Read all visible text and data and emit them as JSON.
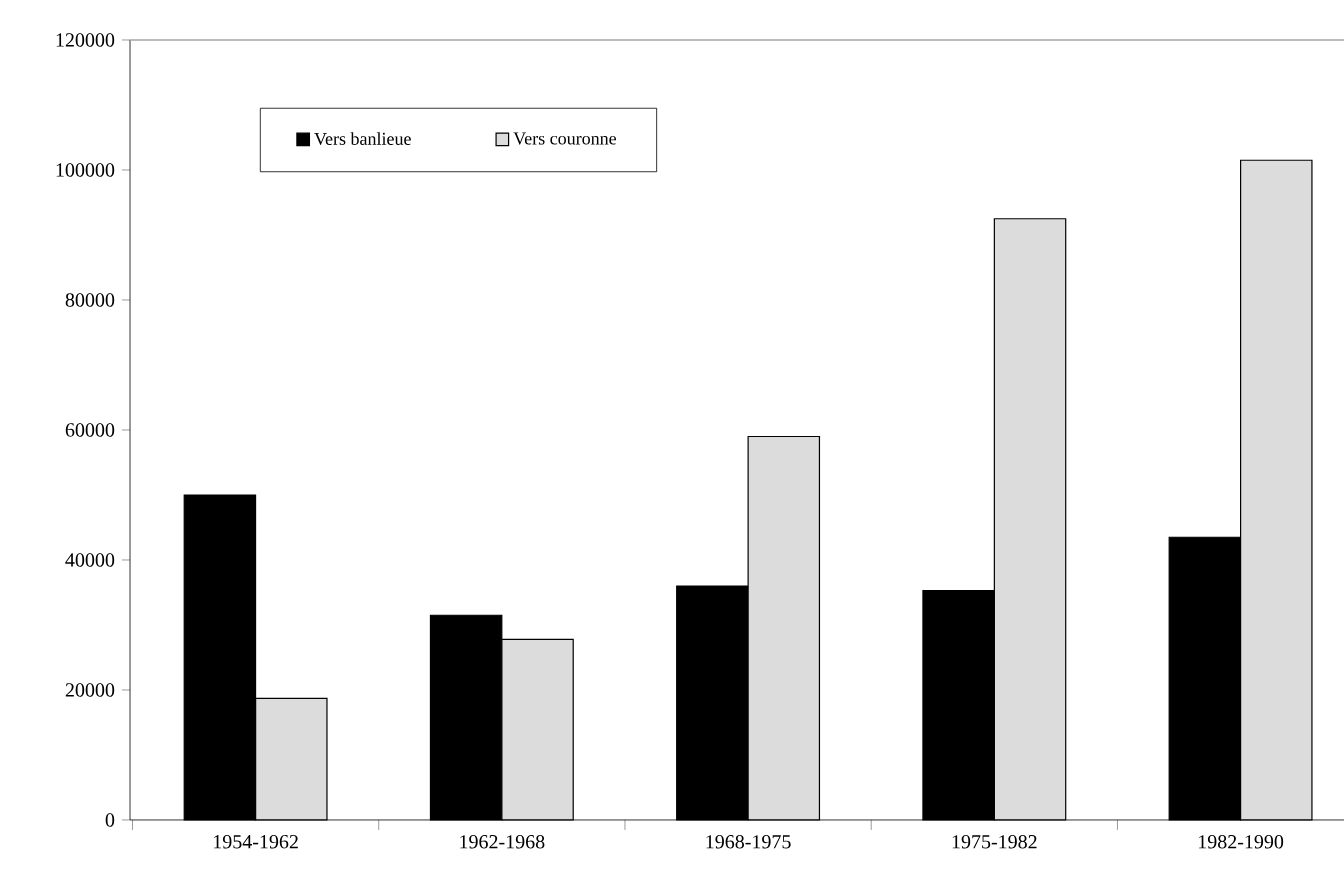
{
  "chart_data": {
    "type": "bar",
    "categories": [
      "1954-1962",
      "1962-1968",
      "1968-1975",
      "1975-1982",
      "1982-1990"
    ],
    "series": [
      {
        "name": "Vers banlieue",
        "color": "#000000",
        "values": [
          50000,
          31500,
          36000,
          35300,
          43500
        ]
      },
      {
        "name": "Vers couronne",
        "color": "#dcdcdc",
        "values": [
          18700,
          27800,
          59000,
          92500,
          101500
        ]
      }
    ],
    "ylim": [
      0,
      120000
    ],
    "yticks": [
      0,
      20000,
      40000,
      60000,
      80000,
      100000,
      120000
    ],
    "grid": false,
    "legend": "top left"
  }
}
